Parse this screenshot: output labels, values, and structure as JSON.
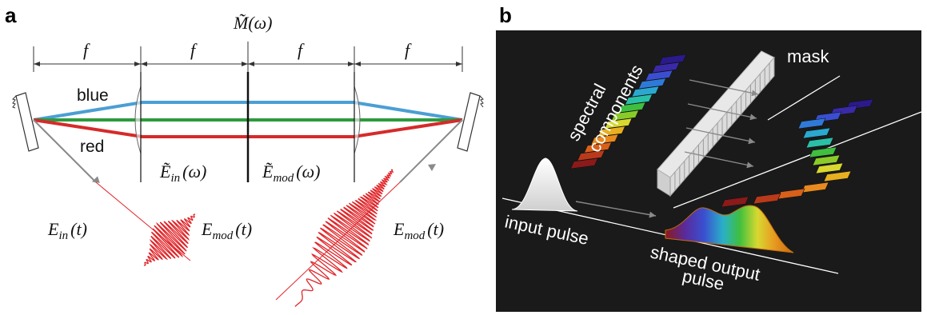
{
  "panel_a": {
    "label": "a",
    "mask_label": "M̃(ω)",
    "focal_labels": [
      "f",
      "f",
      "f",
      "f"
    ],
    "color_labels": {
      "blue": "blue",
      "red": "red"
    },
    "field_labels": {
      "e_in_omega_main": "Ẽ",
      "e_in_omega_sub": "in",
      "e_in_omega_arg": "(ω)",
      "e_mod_omega_main": "Ẽ",
      "e_mod_omega_sub": "mod",
      "e_mod_omega_arg": "(ω)",
      "e_in_t_main": "E",
      "e_in_t_sub": "in",
      "e_in_t_arg": "(t)",
      "e_mod_t_center_main": "E",
      "e_mod_t_center_sub": "mod",
      "e_mod_t_center_arg": "(t)",
      "e_mod_t_right_main": "E",
      "e_mod_t_right_sub": "mod",
      "e_mod_t_right_arg": "(t)"
    },
    "colors": {
      "blue": "#4a9fd4",
      "green": "#2e9a3e",
      "red": "#d62a2a",
      "pulse": "#e0262a"
    }
  },
  "panel_b": {
    "label": "b",
    "labels": {
      "spectral_line1": "spectral",
      "spectral_line2": "components",
      "mask": "mask",
      "input_pulse": "input pulse",
      "shaped_line1": "shaped output",
      "shaped_line2": "pulse"
    },
    "background": "#1a1a1a"
  }
}
